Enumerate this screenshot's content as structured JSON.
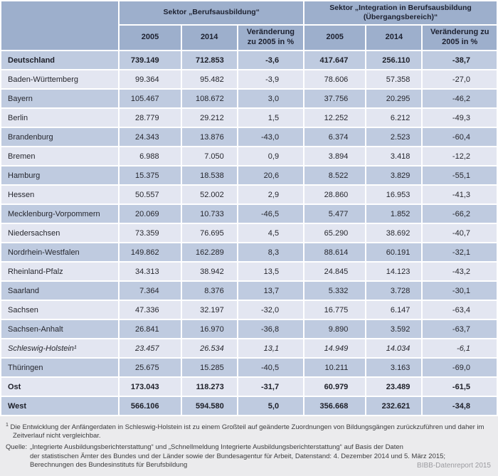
{
  "colors": {
    "page_bg": "#ebebed",
    "header_bg": "#9dafcc",
    "row_dark": "#bfcbe0",
    "row_light": "#e3e6f1",
    "grid_line": "#ffffff",
    "text": "#26272e",
    "branding_gray": "#9b9ba0"
  },
  "table": {
    "sectors": [
      {
        "label": "Sektor „Berufsausbildung“"
      },
      {
        "label": "Sektor „Integration in Berufsausbildung (Übergangsbereich)“"
      }
    ],
    "sub_headers": [
      "2005",
      "2014",
      "Veränderung zu 2005 in %",
      "2005",
      "2014",
      "Veränderung zu 2005 in %"
    ],
    "rows": [
      {
        "label": "Deutschland",
        "emphasis": "bold",
        "values": [
          "739.149",
          "712.853",
          "-3,6",
          "417.647",
          "256.110",
          "-38,7"
        ]
      },
      {
        "label": "Baden-Württemberg",
        "emphasis": "normal",
        "values": [
          "99.364",
          "95.482",
          "-3,9",
          "78.606",
          "57.358",
          "-27,0"
        ]
      },
      {
        "label": "Bayern",
        "emphasis": "normal",
        "values": [
          "105.467",
          "108.672",
          "3,0",
          "37.756",
          "20.295",
          "-46,2"
        ]
      },
      {
        "label": "Berlin",
        "emphasis": "normal",
        "values": [
          "28.779",
          "29.212",
          "1,5",
          "12.252",
          "6.212",
          "-49,3"
        ]
      },
      {
        "label": "Brandenburg",
        "emphasis": "normal",
        "values": [
          "24.343",
          "13.876",
          "-43,0",
          "6.374",
          "2.523",
          "-60,4"
        ]
      },
      {
        "label": "Bremen",
        "emphasis": "normal",
        "values": [
          "6.988",
          "7.050",
          "0,9",
          "3.894",
          "3.418",
          "-12,2"
        ]
      },
      {
        "label": "Hamburg",
        "emphasis": "normal",
        "values": [
          "15.375",
          "18.538",
          "20,6",
          "8.522",
          "3.829",
          "-55,1"
        ]
      },
      {
        "label": "Hessen",
        "emphasis": "normal",
        "values": [
          "50.557",
          "52.002",
          "2,9",
          "28.860",
          "16.953",
          "-41,3"
        ]
      },
      {
        "label": "Mecklenburg-Vorpommern",
        "emphasis": "normal",
        "values": [
          "20.069",
          "10.733",
          "-46,5",
          "5.477",
          "1.852",
          "-66,2"
        ]
      },
      {
        "label": "Niedersachsen",
        "emphasis": "normal",
        "values": [
          "73.359",
          "76.695",
          "4,5",
          "65.290",
          "38.692",
          "-40,7"
        ]
      },
      {
        "label": "Nordrhein-Westfalen",
        "emphasis": "normal",
        "values": [
          "149.862",
          "162.289",
          "8,3",
          "88.614",
          "60.191",
          "-32,1"
        ]
      },
      {
        "label": "Rheinland-Pfalz",
        "emphasis": "normal",
        "values": [
          "34.313",
          "38.942",
          "13,5",
          "24.845",
          "14.123",
          "-43,2"
        ]
      },
      {
        "label": "Saarland",
        "emphasis": "normal",
        "values": [
          "7.364",
          "8.376",
          "13,7",
          "5.332",
          "3.728",
          "-30,1"
        ]
      },
      {
        "label": "Sachsen",
        "emphasis": "normal",
        "values": [
          "47.336",
          "32.197",
          "-32,0",
          "16.775",
          "6.147",
          "-63,4"
        ]
      },
      {
        "label": "Sachsen-Anhalt",
        "emphasis": "normal",
        "values": [
          "26.841",
          "16.970",
          "-36,8",
          "9.890",
          "3.592",
          "-63,7"
        ]
      },
      {
        "label": "Schleswig-Holstein¹",
        "emphasis": "italic",
        "values": [
          "23.457",
          "26.534",
          "13,1",
          "14.949",
          "14.034",
          "-6,1"
        ]
      },
      {
        "label": "Thüringen",
        "emphasis": "normal",
        "values": [
          "25.675",
          "15.285",
          "-40,5",
          "10.211",
          "3.163",
          "-69,0"
        ]
      },
      {
        "label": "Ost",
        "emphasis": "bold",
        "values": [
          "173.043",
          "118.273",
          "-31,7",
          "60.979",
          "23.489",
          "-61,5"
        ]
      },
      {
        "label": "West",
        "emphasis": "bold",
        "values": [
          "566.106",
          "594.580",
          "5,0",
          "356.668",
          "232.621",
          "-34,8"
        ]
      }
    ]
  },
  "footnote": {
    "marker": "1",
    "text": "Die Entwicklung der Anfängerdaten in Schleswig-Holstein ist zu einem Großteil auf geänderte Zuordnungen von Bildungsgängen zurückzuführen und daher im Zeitverlauf nicht vergleichbar."
  },
  "source": {
    "label": "Quelle:",
    "lines": [
      "„Integrierte Ausbildungsberichterstattung“ und „Schnellmeldung Integrierte Ausbildungsberichterstattung“ auf Basis der Daten",
      "der statistischen Ämter des Bundes und der Länder sowie der Bundesagentur für Arbeit, Datenstand: 4. Dezember 2014 und 5. März 2015;",
      "Berechnungen des Bundesinstituts für Berufsbildung"
    ]
  },
  "branding": "BIBB-Datenreport 2015"
}
